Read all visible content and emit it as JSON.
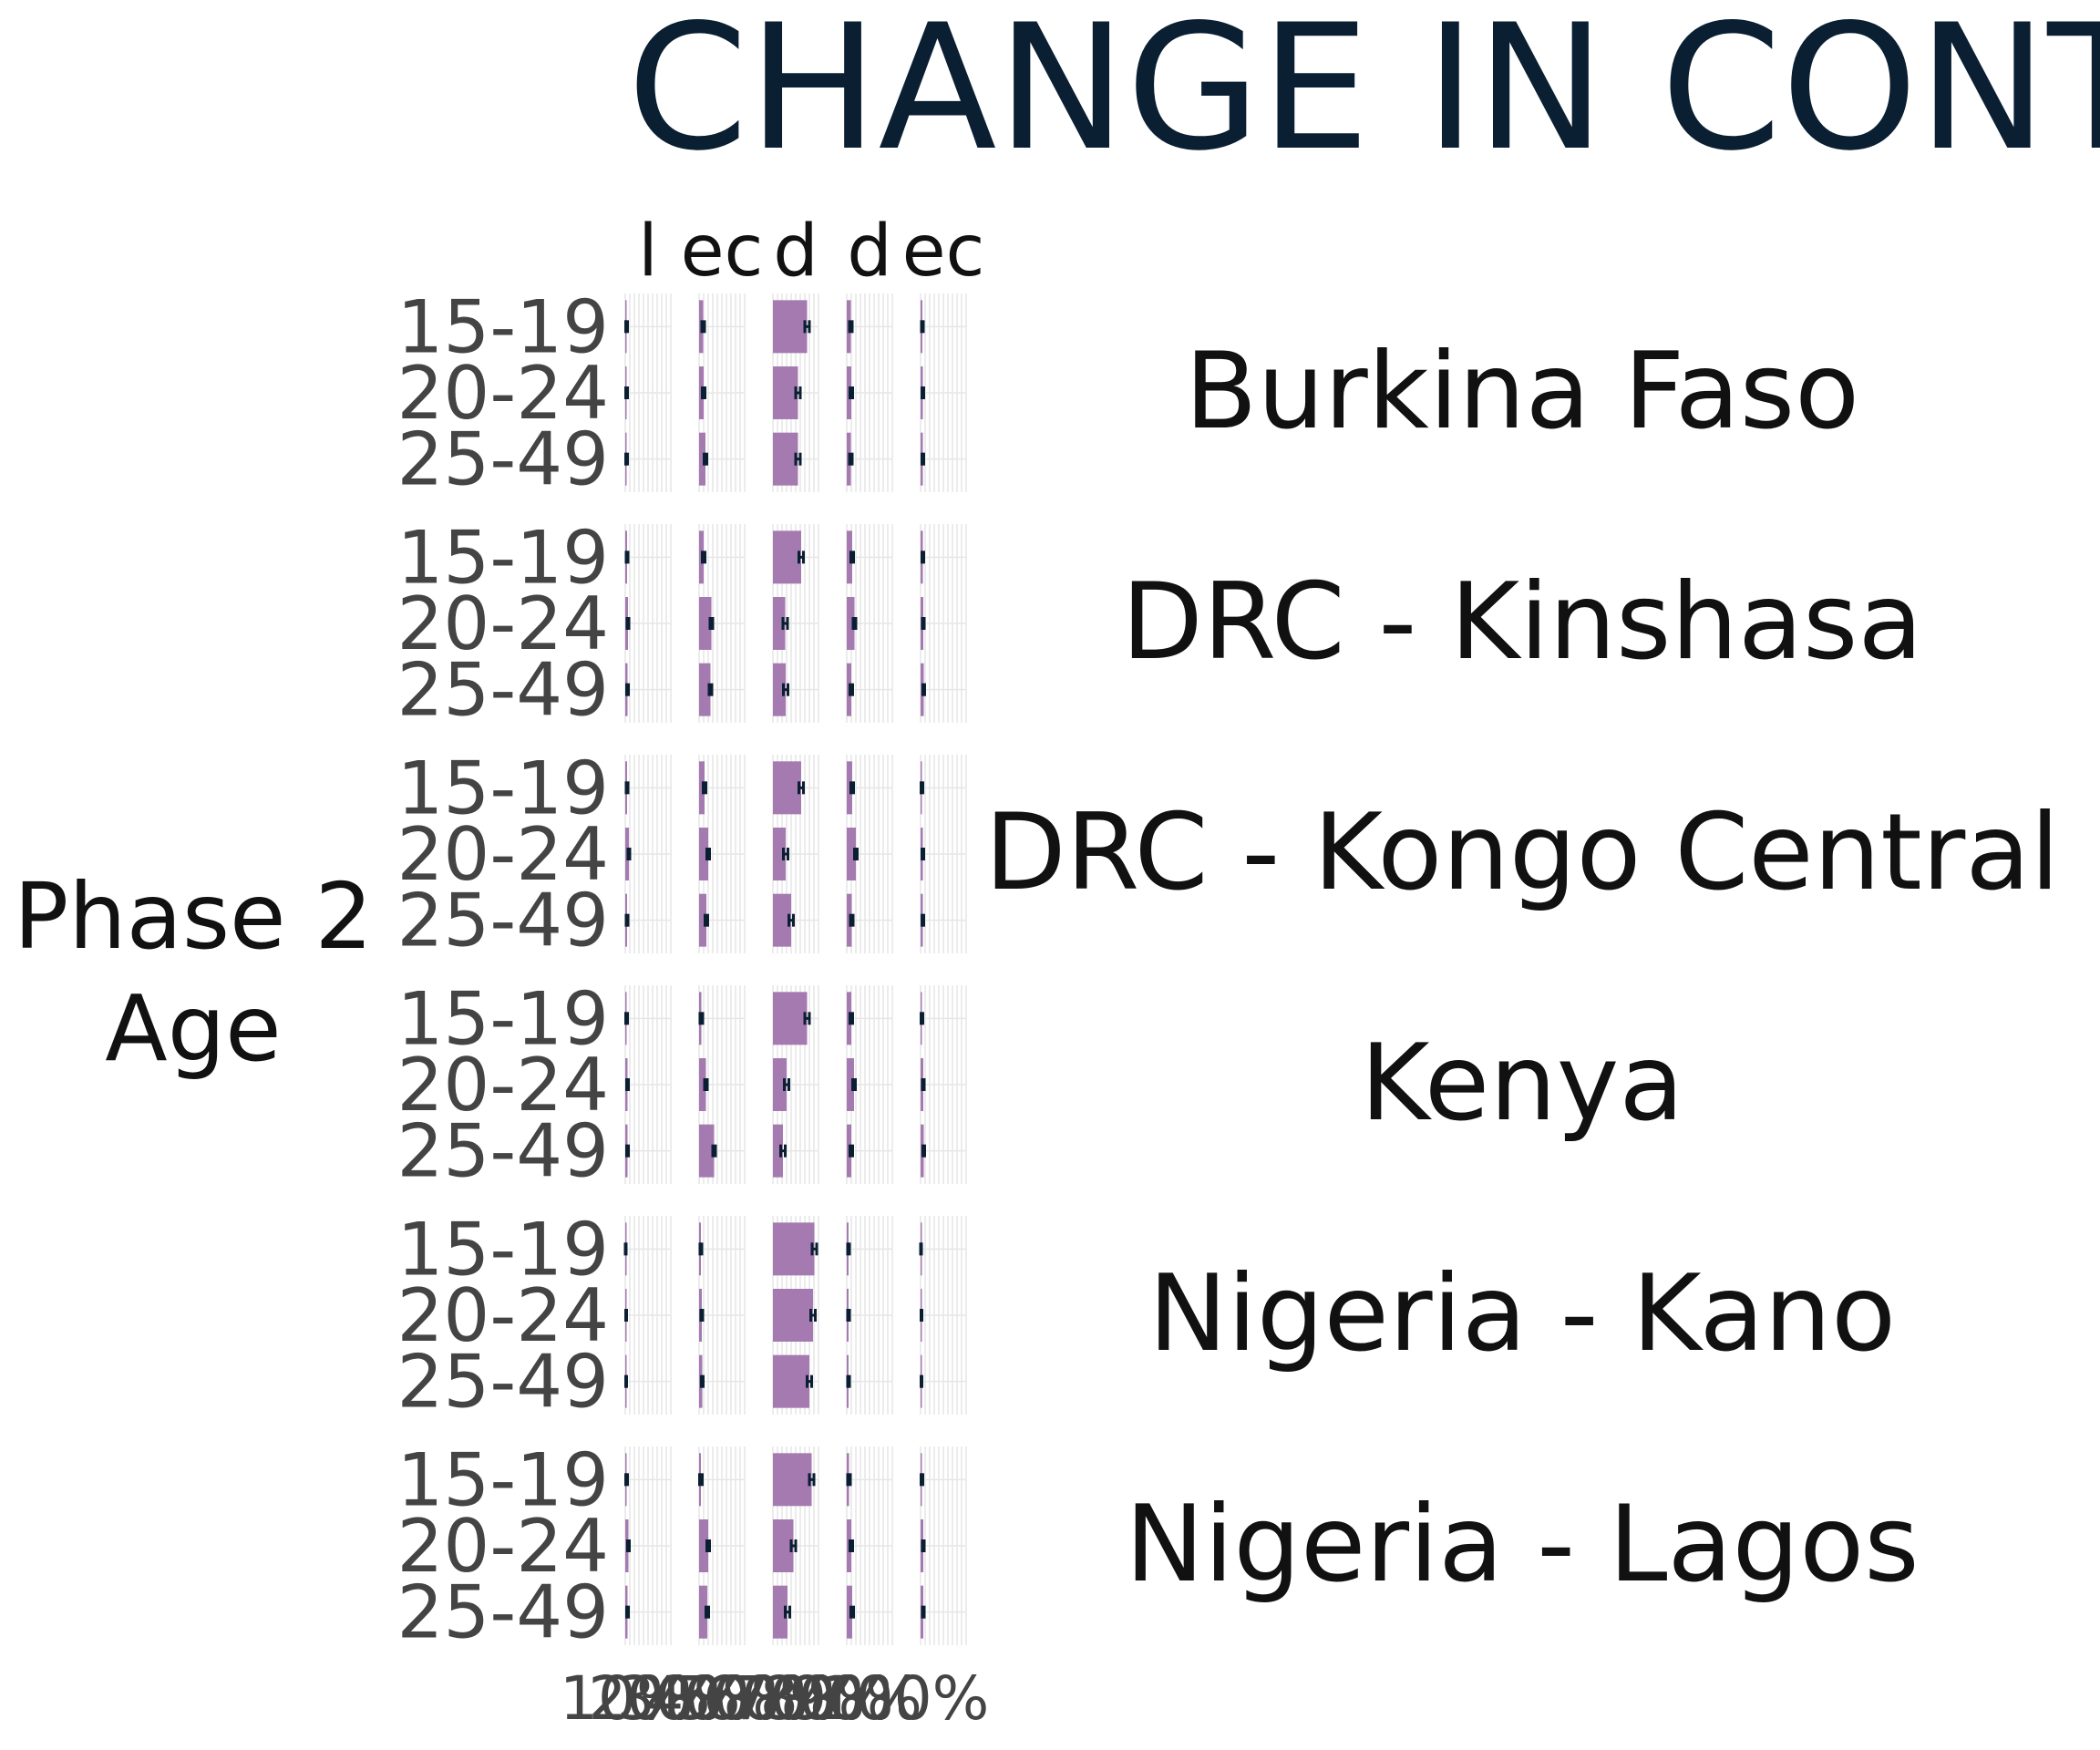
{
  "chart_data": {
    "type": "bar",
    "orientation": "horizontal",
    "title": "CHANGE IN CONTR",
    "y_axis_title": [
      "Phase 2",
      "Age"
    ],
    "column_headers": [
      "l",
      "ec",
      "d",
      "d",
      "ec"
    ],
    "panel_x_range": [
      0,
      1
    ],
    "grid": true,
    "x_tick_labels": [
      "10%",
      "20%",
      "30%",
      "40%",
      "50%",
      "60%",
      "70%",
      "80%",
      "90%",
      "100%"
    ],
    "categories": [
      "15-19",
      "20-24",
      "25-49"
    ],
    "colors": {
      "bar": "#a47ab0",
      "error_bar": "#0b1f33",
      "panel": "#ffffff",
      "grid": "#e6e6e6"
    },
    "rows": [
      {
        "name": "Burkina Faso",
        "values": [
          [
            0.03,
            0.09,
            0.75,
            0.09,
            0.04
          ],
          [
            0.03,
            0.1,
            0.55,
            0.1,
            0.05
          ],
          [
            0.03,
            0.14,
            0.55,
            0.09,
            0.05
          ]
        ],
        "errors": [
          [
            0.02,
            0.03,
            0.05,
            0.03,
            0.02
          ],
          [
            0.02,
            0.03,
            0.05,
            0.03,
            0.02
          ],
          [
            0.02,
            0.03,
            0.05,
            0.03,
            0.02
          ]
        ]
      },
      {
        "name": "DRC - Kinshasa",
        "values": [
          [
            0.04,
            0.1,
            0.62,
            0.12,
            0.05
          ],
          [
            0.06,
            0.27,
            0.27,
            0.17,
            0.06
          ],
          [
            0.05,
            0.25,
            0.28,
            0.1,
            0.07
          ]
        ],
        "errors": [
          [
            0.02,
            0.03,
            0.05,
            0.03,
            0.02
          ],
          [
            0.02,
            0.03,
            0.05,
            0.03,
            0.02
          ],
          [
            0.02,
            0.03,
            0.05,
            0.03,
            0.02
          ]
        ]
      },
      {
        "name": "DRC - Kongo Central",
        "values": [
          [
            0.04,
            0.12,
            0.62,
            0.12,
            0.03
          ],
          [
            0.08,
            0.2,
            0.28,
            0.2,
            0.05
          ],
          [
            0.04,
            0.16,
            0.4,
            0.11,
            0.05
          ]
        ],
        "errors": [
          [
            0.02,
            0.03,
            0.05,
            0.03,
            0.02
          ],
          [
            0.02,
            0.03,
            0.05,
            0.03,
            0.02
          ],
          [
            0.02,
            0.03,
            0.05,
            0.03,
            0.02
          ]
        ]
      },
      {
        "name": "Kenya",
        "values": [
          [
            0.03,
            0.05,
            0.75,
            0.1,
            0.03
          ],
          [
            0.05,
            0.15,
            0.3,
            0.16,
            0.06
          ],
          [
            0.05,
            0.33,
            0.22,
            0.1,
            0.07
          ]
        ],
        "errors": [
          [
            0.02,
            0.03,
            0.05,
            0.03,
            0.02
          ],
          [
            0.02,
            0.03,
            0.05,
            0.03,
            0.02
          ],
          [
            0.02,
            0.03,
            0.05,
            0.03,
            0.02
          ]
        ]
      },
      {
        "name": "Nigeria - Kano",
        "values": [
          [
            0.01,
            0.04,
            0.91,
            0.04,
            0.01
          ],
          [
            0.02,
            0.06,
            0.88,
            0.04,
            0.02
          ],
          [
            0.02,
            0.07,
            0.8,
            0.04,
            0.02
          ]
        ],
        "errors": [
          [
            0.01,
            0.02,
            0.05,
            0.02,
            0.01
          ],
          [
            0.01,
            0.02,
            0.05,
            0.02,
            0.01
          ],
          [
            0.01,
            0.02,
            0.05,
            0.02,
            0.01
          ]
        ]
      },
      {
        "name": "Nigeria - Lagos",
        "values": [
          [
            0.03,
            0.04,
            0.85,
            0.05,
            0.03
          ],
          [
            0.07,
            0.2,
            0.45,
            0.1,
            0.06
          ],
          [
            0.05,
            0.18,
            0.32,
            0.12,
            0.06
          ]
        ],
        "errors": [
          [
            0.02,
            0.03,
            0.05,
            0.03,
            0.02
          ],
          [
            0.02,
            0.03,
            0.05,
            0.03,
            0.02
          ],
          [
            0.02,
            0.03,
            0.05,
            0.03,
            0.02
          ]
        ]
      }
    ]
  }
}
